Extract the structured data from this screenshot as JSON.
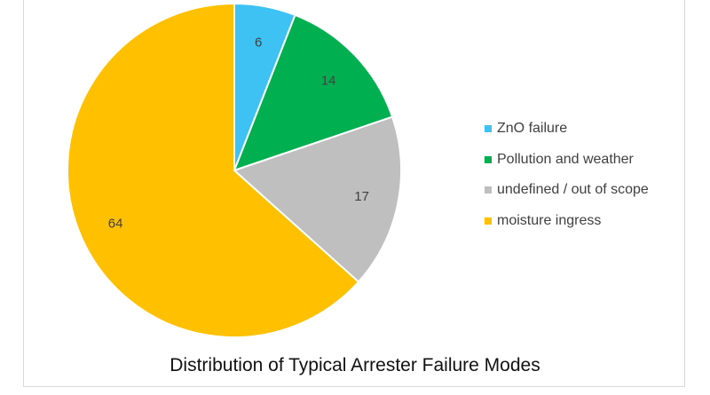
{
  "chart_data": {
    "type": "pie",
    "title": "Distribution of Typical Arrester Failure Modes",
    "categories": [
      "ZnO failure",
      "Pollution and weather",
      "undefined / out of scope",
      "moisture ingress"
    ],
    "values": [
      6,
      14,
      17,
      64
    ],
    "colors": [
      "#3ec1f3",
      "#00b050",
      "#bfbfbf",
      "#ffc000"
    ],
    "data_labels": [
      "6",
      "14",
      "17",
      "64"
    ],
    "legend_position": "right",
    "start_angle": "top, clockwise"
  }
}
